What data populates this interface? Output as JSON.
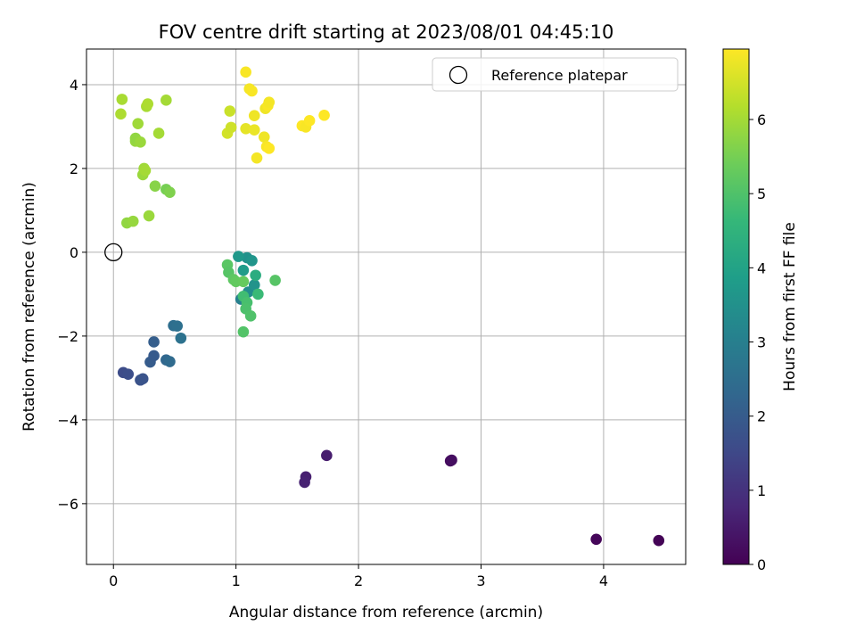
{
  "chart_data": {
    "type": "scatter",
    "title": "FOV centre drift starting at 2023/08/01 04:45:10",
    "xlabel": "Angular distance from reference (arcmin)",
    "ylabel": "Rotation from reference (arcmin)",
    "xlim": [
      -0.22,
      4.67
    ],
    "ylim": [
      -7.45,
      4.85
    ],
    "xticks": [
      0,
      1,
      2,
      3,
      4
    ],
    "yticks": [
      -6,
      -4,
      -2,
      0,
      2,
      4
    ],
    "grid": true,
    "legend": {
      "placement": "top-right",
      "entries": [
        "Reference platepar"
      ]
    },
    "reference_point": {
      "name": "Reference platepar",
      "x": 0,
      "y": 0
    },
    "colorbar": {
      "label": "Hours from first FF file",
      "colormap": "viridis",
      "range": [
        0,
        6.95
      ],
      "ticks": [
        0,
        1,
        2,
        3,
        4,
        5,
        6
      ]
    },
    "points": [
      {
        "x": 4.45,
        "y": -6.88,
        "c": 0.05
      },
      {
        "x": 3.94,
        "y": -6.85,
        "c": 0.1
      },
      {
        "x": 2.75,
        "y": -4.98,
        "c": 0.2
      },
      {
        "x": 2.76,
        "y": -4.96,
        "c": 0.25
      },
      {
        "x": 1.74,
        "y": -4.85,
        "c": 0.55
      },
      {
        "x": 1.57,
        "y": -5.36,
        "c": 0.6
      },
      {
        "x": 1.56,
        "y": -5.49,
        "c": 0.65
      },
      {
        "x": 0.08,
        "y": -2.87,
        "c": 1.6
      },
      {
        "x": 0.12,
        "y": -2.91,
        "c": 1.65
      },
      {
        "x": 0.22,
        "y": -3.05,
        "c": 1.75
      },
      {
        "x": 0.24,
        "y": -3.02,
        "c": 1.8
      },
      {
        "x": 0.3,
        "y": -2.62,
        "c": 2.0
      },
      {
        "x": 0.33,
        "y": -2.47,
        "c": 1.95
      },
      {
        "x": 0.33,
        "y": -2.14,
        "c": 2.05
      },
      {
        "x": 0.43,
        "y": -2.57,
        "c": 2.3
      },
      {
        "x": 0.46,
        "y": -2.61,
        "c": 2.4
      },
      {
        "x": 0.49,
        "y": -1.75,
        "c": 2.5
      },
      {
        "x": 0.52,
        "y": -1.76,
        "c": 2.55
      },
      {
        "x": 0.55,
        "y": -2.05,
        "c": 2.6
      },
      {
        "x": 1.04,
        "y": -1.12,
        "c": 3.0
      },
      {
        "x": 1.1,
        "y": -0.95,
        "c": 3.4
      },
      {
        "x": 1.09,
        "y": -0.13,
        "c": 3.5
      },
      {
        "x": 1.13,
        "y": -0.2,
        "c": 3.6
      },
      {
        "x": 1.15,
        "y": -0.78,
        "c": 3.55
      },
      {
        "x": 1.02,
        "y": -0.1,
        "c": 3.7
      },
      {
        "x": 1.06,
        "y": -0.43,
        "c": 3.8
      },
      {
        "x": 1.16,
        "y": -0.55,
        "c": 4.3
      },
      {
        "x": 1.18,
        "y": -1.0,
        "c": 4.7
      },
      {
        "x": 1.06,
        "y": -1.05,
        "c": 4.8
      },
      {
        "x": 1.09,
        "y": -1.2,
        "c": 4.9
      },
      {
        "x": 1.08,
        "y": -1.35,
        "c": 4.95
      },
      {
        "x": 1.12,
        "y": -1.52,
        "c": 5.0
      },
      {
        "x": 1.06,
        "y": -1.9,
        "c": 5.05
      },
      {
        "x": 1.32,
        "y": -0.67,
        "c": 5.1
      },
      {
        "x": 0.93,
        "y": -0.3,
        "c": 5.15
      },
      {
        "x": 0.94,
        "y": -0.48,
        "c": 5.1
      },
      {
        "x": 0.98,
        "y": -0.65,
        "c": 5.2
      },
      {
        "x": 1.0,
        "y": -0.7,
        "c": 5.25
      },
      {
        "x": 1.06,
        "y": -0.7,
        "c": 5.3
      },
      {
        "x": 0.11,
        "y": 0.7,
        "c": 5.8
      },
      {
        "x": 0.16,
        "y": 0.74,
        "c": 5.85
      },
      {
        "x": 0.29,
        "y": 0.87,
        "c": 5.9
      },
      {
        "x": 0.34,
        "y": 1.58,
        "c": 5.7
      },
      {
        "x": 0.43,
        "y": 1.5,
        "c": 5.5
      },
      {
        "x": 0.46,
        "y": 1.43,
        "c": 5.6
      },
      {
        "x": 0.24,
        "y": 1.85,
        "c": 5.9
      },
      {
        "x": 0.25,
        "y": 2.0,
        "c": 5.95
      },
      {
        "x": 0.26,
        "y": 1.95,
        "c": 6.0
      },
      {
        "x": 0.18,
        "y": 2.65,
        "c": 5.85
      },
      {
        "x": 0.18,
        "y": 2.72,
        "c": 5.8
      },
      {
        "x": 0.22,
        "y": 2.63,
        "c": 5.9
      },
      {
        "x": 0.2,
        "y": 3.07,
        "c": 5.95
      },
      {
        "x": 0.37,
        "y": 2.84,
        "c": 6.0
      },
      {
        "x": 0.07,
        "y": 3.65,
        "c": 6.05
      },
      {
        "x": 0.06,
        "y": 3.3,
        "c": 6.1
      },
      {
        "x": 0.27,
        "y": 3.48,
        "c": 6.05
      },
      {
        "x": 0.28,
        "y": 3.54,
        "c": 6.1
      },
      {
        "x": 0.43,
        "y": 3.63,
        "c": 6.0
      },
      {
        "x": 0.93,
        "y": 2.84,
        "c": 6.5
      },
      {
        "x": 0.96,
        "y": 2.98,
        "c": 6.45
      },
      {
        "x": 0.95,
        "y": 3.37,
        "c": 6.4
      },
      {
        "x": 1.08,
        "y": 2.95,
        "c": 6.7
      },
      {
        "x": 1.08,
        "y": 4.3,
        "c": 6.9
      },
      {
        "x": 1.11,
        "y": 3.9,
        "c": 6.85
      },
      {
        "x": 1.13,
        "y": 3.85,
        "c": 6.9
      },
      {
        "x": 1.15,
        "y": 3.26,
        "c": 6.8
      },
      {
        "x": 1.15,
        "y": 2.92,
        "c": 6.75
      },
      {
        "x": 1.17,
        "y": 2.25,
        "c": 6.85
      },
      {
        "x": 1.23,
        "y": 2.75,
        "c": 6.8
      },
      {
        "x": 1.24,
        "y": 3.43,
        "c": 6.8
      },
      {
        "x": 1.26,
        "y": 3.5,
        "c": 6.9
      },
      {
        "x": 1.27,
        "y": 3.58,
        "c": 6.85
      },
      {
        "x": 1.25,
        "y": 2.52,
        "c": 6.9
      },
      {
        "x": 1.27,
        "y": 2.48,
        "c": 6.95
      },
      {
        "x": 1.54,
        "y": 3.02,
        "c": 6.95
      },
      {
        "x": 1.57,
        "y": 2.99,
        "c": 6.9
      },
      {
        "x": 1.6,
        "y": 3.14,
        "c": 6.95
      },
      {
        "x": 1.72,
        "y": 3.27,
        "c": 6.95
      }
    ]
  }
}
